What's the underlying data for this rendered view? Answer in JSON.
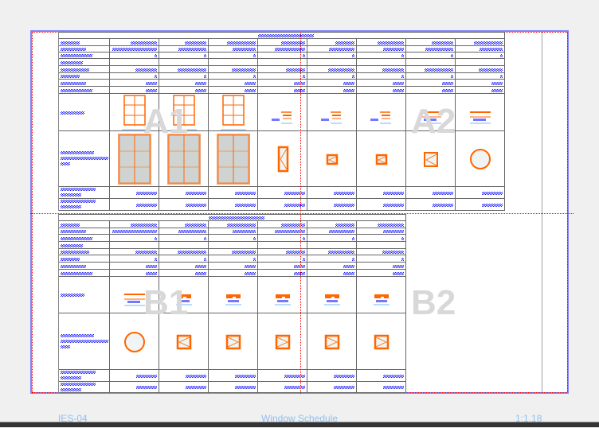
{
  "footer": {
    "sheet_id": "IES-04",
    "title": "Window Schedule",
    "scale": "1:1.18"
  },
  "watermarks": {
    "a1": "A1",
    "a2": "A2",
    "b1": "B1",
    "b2": "B2"
  },
  "colors": {
    "sheet_border": "#8080ff",
    "grid_line": "#666666",
    "greeked_text": "#1a1aff",
    "symbol": "#ff6600",
    "glass": "#cfd4d2",
    "dimension": "#70b8ff",
    "guide": "#ee0000",
    "watermark": "#d8d8d8"
  },
  "table_a": {
    "columns": 8,
    "elevation_icons": [
      "window-grid",
      "window-grid",
      "window-grid",
      "plan-section",
      "plan-section",
      "plan-section",
      "plan-section-wide",
      "plan-section-wide"
    ],
    "plan_icons": [
      "glazed-window",
      "glazed-window",
      "glazed-window",
      "tall-casement",
      "small-casement",
      "small-casement",
      "casement",
      "round-window"
    ]
  },
  "table_b": {
    "columns": 6,
    "elevation_icons": [
      "plan-section-wide",
      "plan-notch",
      "plan-notch",
      "plan-notch",
      "plan-notch",
      "plan-notch"
    ],
    "plan_icons": [
      "round-window",
      "square-casement-left",
      "square-casement-right",
      "square-casement-right",
      "square-casement-right",
      "square-casement-right"
    ]
  }
}
